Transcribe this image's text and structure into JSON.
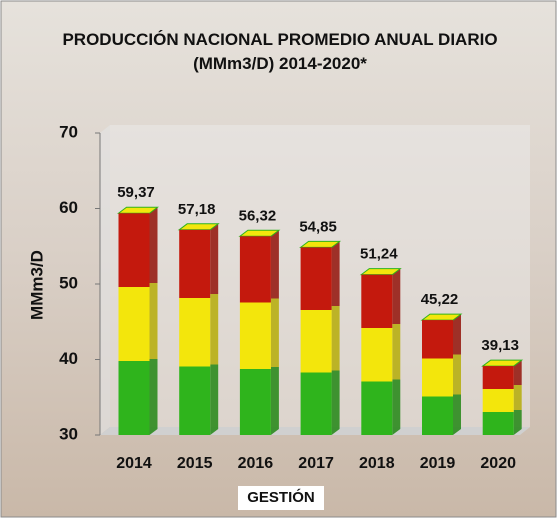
{
  "chart_data": {
    "type": "bar3d",
    "title": "PRODUCCIÓN NACIONAL PROMEDIO ANUAL DIARIO (MMm3/D) 2014-2020*",
    "y_label": "MMm3/D",
    "x_label": "GESTIÓN",
    "categories": [
      "2014",
      "2015",
      "2016",
      "2017",
      "2018",
      "2019",
      "2020"
    ],
    "values": [
      59.37,
      57.18,
      56.32,
      54.85,
      51.24,
      45.22,
      39.13
    ],
    "value_labels": [
      "59,37",
      "57,18",
      "56,32",
      "54,85",
      "51,24",
      "45,22",
      "39,13"
    ],
    "colors": [
      "#c4190d",
      "#f3e60c",
      "#2fb41c"
    ],
    "ylim": [
      30,
      70
    ],
    "yticks": [
      30,
      40,
      50,
      60,
      70
    ]
  }
}
